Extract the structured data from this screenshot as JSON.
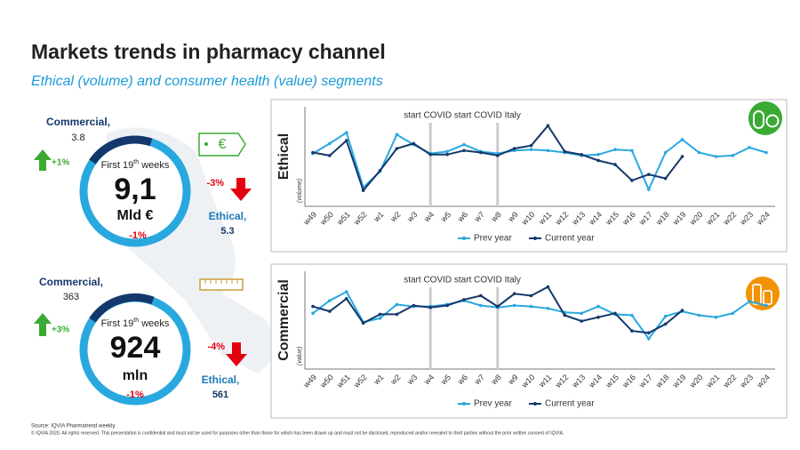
{
  "header": {
    "title": "Markets trends in pharmacy channel",
    "subtitle": "Ethical (volume) and consumer health (value) segments"
  },
  "panels": [
    {
      "commercial_label": "Commercial,",
      "commercial_value": "3.8",
      "commercial_change": "+1%",
      "period_prefix": "First 19",
      "period_sup": "th",
      "period_suffix": " weeks",
      "total": "9,1",
      "unit": "Mld €",
      "total_change": "-1%",
      "ethical_change": "-3%",
      "ethical_label": "Ethical,",
      "ethical_value": "5.3",
      "icon_text": "€"
    },
    {
      "commercial_label": "Commercial,",
      "commercial_value": "363",
      "commercial_change": "+3%",
      "period_prefix": "First 19",
      "period_sup": "th",
      "period_suffix": " weeks",
      "total": "924",
      "unit": "mln",
      "total_change": "-1%",
      "ethical_change": "-4%",
      "ethical_label": "Ethical,",
      "ethical_value": "561"
    }
  ],
  "footer": {
    "source": "Source: IQVIA Pharmatrend weekly.",
    "copyright": "© IQVIA 2020. All rights reserved. This presentation is confidential and must not be used for purposes other than those for which has been drawn up and must not be disclosed, reproduced and/or revealed to third parties without the prior written consent of IQVIA."
  },
  "chart_data": [
    {
      "type": "line",
      "y_label": "Ethical",
      "y_sublabel": "(volume)",
      "annotation": "start COVID start COVID Italy",
      "reference_lines": [
        "w4",
        "w8"
      ],
      "categories": [
        "w49",
        "w50",
        "w51",
        "w52",
        "w1",
        "w2",
        "w3",
        "w4",
        "w5",
        "w6",
        "w7",
        "w8",
        "w9",
        "w10",
        "w11",
        "w12",
        "w13",
        "w14",
        "w15",
        "w16",
        "w17",
        "w18",
        "w19",
        "w20",
        "w21",
        "w22",
        "w23",
        "w24"
      ],
      "ylim": [
        0,
        100
      ],
      "series": [
        {
          "name": "Prev year",
          "color": "#29a8df",
          "values": [
            53,
            63,
            74,
            19,
            35,
            72,
            62,
            53,
            55,
            62,
            55,
            53,
            56,
            57,
            56,
            54,
            51,
            52,
            57,
            56,
            17,
            54,
            67,
            54,
            50,
            51,
            59,
            54
          ]
        },
        {
          "name": "Current year",
          "color": "#14386b",
          "values": [
            54,
            51,
            66,
            16,
            36,
            58,
            63,
            52,
            52,
            56,
            54,
            51,
            58,
            61,
            81,
            55,
            52,
            46,
            42,
            26,
            32,
            28,
            50,
            null,
            null,
            null,
            null,
            null
          ]
        }
      ]
    },
    {
      "type": "line",
      "y_label": "Commercial",
      "y_sublabel": "(value)",
      "annotation": "start COVID start COVID Italy",
      "reference_lines": [
        "w4",
        "w8"
      ],
      "categories": [
        "w49",
        "w50",
        "w51",
        "w52",
        "w1",
        "w2",
        "w3",
        "w4",
        "w5",
        "w6",
        "w7",
        "w8",
        "w9",
        "w10",
        "w11",
        "w12",
        "w13",
        "w14",
        "w15",
        "w16",
        "w17",
        "w18",
        "w19",
        "w20",
        "w21",
        "w22",
        "w23",
        "w24"
      ],
      "ylim": [
        0,
        100
      ],
      "series": [
        {
          "name": "Prev year",
          "color": "#29a8df",
          "values": [
            57,
            70,
            79,
            48,
            52,
            66,
            64,
            64,
            66,
            70,
            65,
            63,
            65,
            64,
            62,
            58,
            57,
            64,
            56,
            55,
            31,
            54,
            59,
            55,
            53,
            57,
            69,
            65
          ]
        },
        {
          "name": "Current year",
          "color": "#14386b",
          "values": [
            64,
            59,
            72,
            47,
            56,
            56,
            65,
            63,
            65,
            71,
            75,
            64,
            77,
            75,
            84,
            55,
            49,
            53,
            57,
            39,
            37,
            46,
            60,
            null,
            null,
            null,
            null,
            null
          ]
        }
      ]
    }
  ]
}
